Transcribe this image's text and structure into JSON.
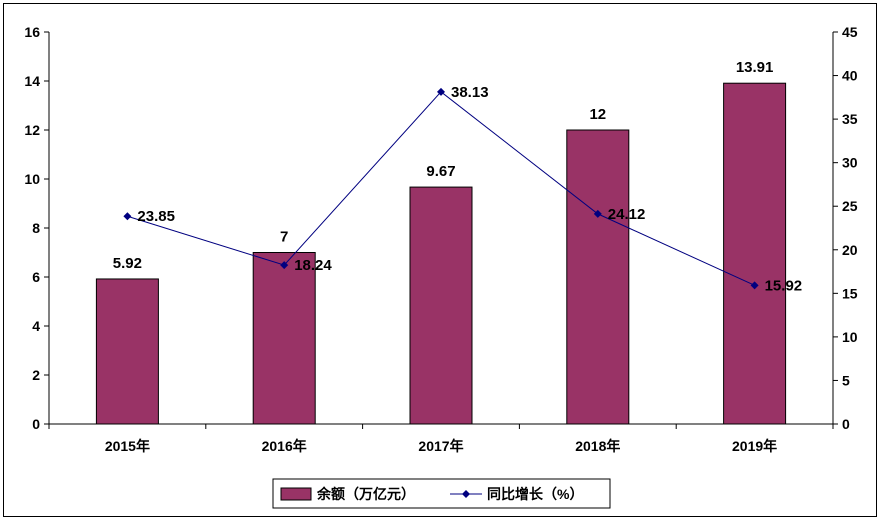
{
  "chart_data": {
    "type": "bar",
    "categories": [
      "2015年",
      "2016年",
      "2017年",
      "2018年",
      "2019年"
    ],
    "series": [
      {
        "name": "余额（万亿元）",
        "type": "bar",
        "axis": "left",
        "values": [
          5.92,
          7,
          9.67,
          12,
          13.91
        ],
        "labels": [
          "5.92",
          "7",
          "9.67",
          "12",
          "13.91"
        ],
        "color": "#993366"
      },
      {
        "name": "同比增长（%）",
        "type": "line",
        "axis": "right",
        "values": [
          23.85,
          18.24,
          38.13,
          24.12,
          15.92
        ],
        "labels": [
          "23.85",
          "18.24",
          "38.13",
          "24.12",
          "15.92"
        ],
        "color": "#000080"
      }
    ],
    "y_left": {
      "min": 0,
      "max": 16,
      "step": 2
    },
    "y_right": {
      "min": 0,
      "max": 45,
      "step": 5
    },
    "grid": false,
    "legend_position": "bottom"
  }
}
